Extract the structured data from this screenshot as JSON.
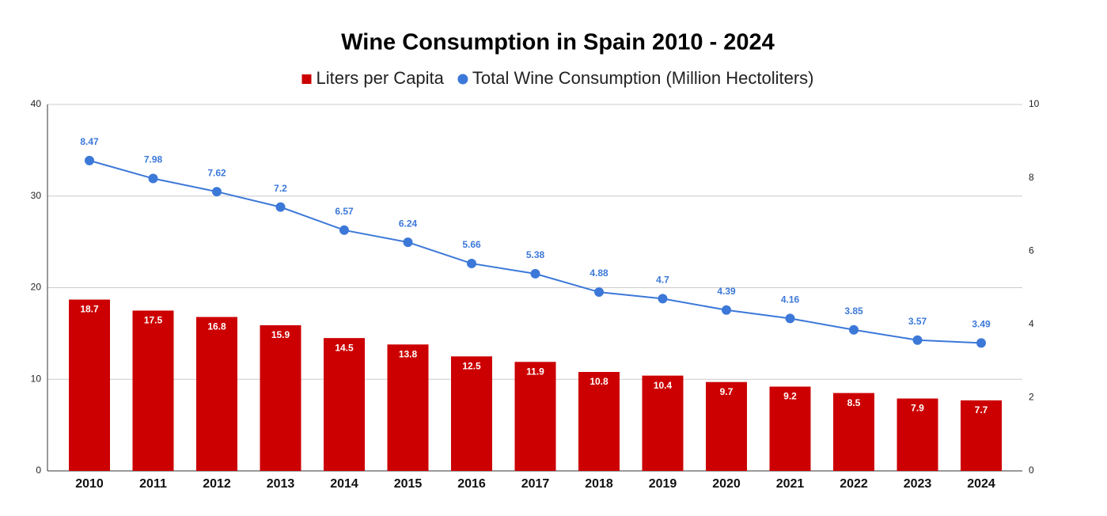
{
  "chart_data": {
    "type": "combo",
    "title": "Wine Consumption in Spain 2010 - 2024",
    "categories": [
      "2010",
      "2011",
      "2012",
      "2013",
      "2014",
      "2015",
      "2016",
      "2017",
      "2018",
      "2019",
      "2020",
      "2021",
      "2022",
      "2023",
      "2024"
    ],
    "series": [
      {
        "name": "Liters per Capita",
        "type": "bar",
        "color": "#cc0000",
        "axis": "y",
        "values": [
          18.7,
          17.5,
          16.8,
          15.9,
          14.5,
          13.8,
          12.5,
          11.9,
          10.8,
          10.4,
          9.7,
          9.2,
          8.5,
          7.9,
          7.7
        ]
      },
      {
        "name": "Total Wine Consumption (Million Hectoliters)",
        "type": "line",
        "color": "#3c78d8",
        "axis": "y2",
        "values": [
          8.47,
          7.98,
          7.62,
          7.2,
          6.57,
          6.24,
          5.66,
          5.38,
          4.88,
          4.7,
          4.39,
          4.16,
          3.85,
          3.57,
          3.49
        ]
      }
    ],
    "ylim": [
      0,
      40
    ],
    "yticks": [
      0,
      10,
      20,
      30,
      40
    ],
    "y2lim": [
      0,
      10
    ],
    "y2ticks": [
      0,
      2,
      4,
      6,
      8,
      10
    ],
    "grid": true,
    "legend": "top"
  }
}
